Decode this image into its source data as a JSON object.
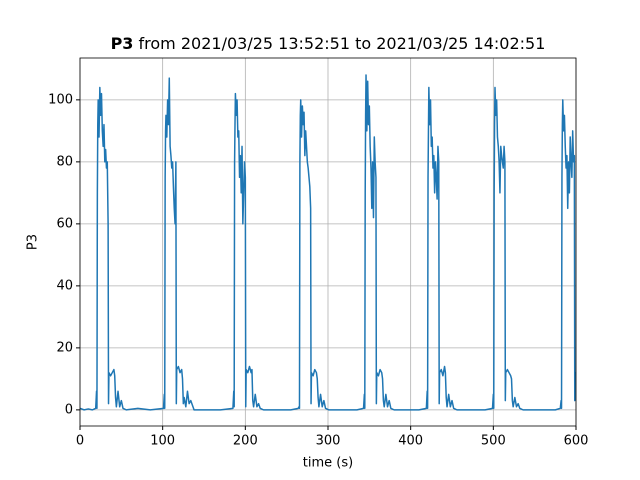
{
  "chart_data": {
    "type": "line",
    "title": [
      "P3",
      "from 2021/03/25 13:52:51 to 2021/03/25 14:02:51"
    ],
    "x_label": "time (s)",
    "y_label": "P3",
    "xlim": [
      0,
      600
    ],
    "ylim": [
      -5.2,
      113.5
    ],
    "xticks": [
      0,
      100,
      200,
      300,
      400,
      500,
      600
    ],
    "yticks": [
      0,
      20,
      40,
      60,
      80,
      100
    ],
    "grid": true,
    "series": [
      {
        "color": "#1f77b4",
        "x": [
          0,
          5,
          10,
          15,
          19,
          20,
          20.5,
          21,
          21.5,
          22,
          23,
          24,
          25,
          26,
          27,
          28,
          29,
          30,
          31,
          32,
          33,
          34,
          34.5,
          35,
          37,
          39,
          41,
          42,
          43,
          44,
          46,
          48,
          50,
          52,
          56,
          70,
          85,
          101,
          102,
          102.5,
          103,
          103.5,
          104,
          105,
          106,
          107,
          108,
          109,
          110,
          111,
          112,
          113,
          114,
          115,
          116,
          116.5,
          117,
          119,
          121,
          123,
          124,
          125,
          126,
          128,
          130,
          132,
          134,
          138,
          150,
          170,
          185,
          186,
          186.5,
          187,
          187.5,
          188,
          189,
          190,
          191,
          192,
          193,
          194,
          195,
          196,
          197,
          198,
          199,
          200,
          200.5,
          201,
          203,
          205,
          207,
          208,
          209,
          210,
          212,
          214,
          216,
          218,
          222,
          240,
          255,
          264,
          265,
          265.5,
          266,
          266.5,
          267,
          268,
          269,
          270,
          271,
          272,
          273,
          274,
          275,
          276,
          277,
          278,
          279,
          279.5,
          280,
          282,
          284,
          286,
          287,
          288,
          289,
          291,
          293,
          295,
          297,
          301,
          320,
          335,
          343,
          344,
          344.5,
          345,
          345.5,
          346,
          347,
          348,
          349,
          350,
          351,
          352,
          353,
          354,
          355,
          356,
          357,
          358,
          358.5,
          359,
          361,
          363,
          365,
          366,
          367,
          368,
          370,
          372,
          374,
          376,
          380,
          395,
          410,
          419,
          420,
          420.5,
          421,
          421.5,
          422,
          423,
          424,
          425,
          426,
          427,
          428,
          429,
          430,
          431,
          432,
          433,
          434,
          434.5,
          435,
          437,
          439,
          441,
          442,
          443,
          444,
          446,
          448,
          450,
          452,
          456,
          475,
          490,
          499,
          500,
          500.5,
          501,
          501.5,
          502,
          503,
          504,
          505,
          506,
          507,
          508,
          509,
          510,
          511,
          512,
          513,
          514,
          514.5,
          515,
          517,
          519,
          521,
          522,
          523,
          524,
          526,
          528,
          530,
          532,
          536,
          550,
          565,
          575,
          581,
          582,
          582.5,
          583,
          583.5,
          584,
          585,
          586,
          587,
          588,
          589,
          590,
          591,
          592,
          593,
          594,
          595,
          596,
          597,
          598,
          598.5,
          599,
          600
        ],
        "values": [
          0.5,
          0,
          0.3,
          0,
          0.5,
          6,
          0.5,
          70,
          92,
          100,
          88,
          104,
          95,
          102,
          90,
          85,
          92,
          80,
          84,
          78,
          80,
          60,
          2,
          12,
          11,
          12,
          13,
          11,
          4,
          1,
          6,
          1,
          3,
          0.5,
          0,
          0.5,
          0,
          0.5,
          5,
          0.5,
          75,
          90,
          95,
          88,
          100,
          92,
          107,
          85,
          82,
          78,
          80,
          72,
          65,
          60,
          80,
          2,
          13,
          14,
          12,
          13,
          10,
          2,
          4,
          1,
          6,
          2,
          3,
          0,
          0,
          0,
          0.5,
          6,
          1,
          80,
          92,
          102,
          95,
          100,
          88,
          90,
          75,
          82,
          70,
          85,
          60,
          70,
          80,
          75,
          1,
          13,
          12,
          14,
          12,
          13,
          3,
          1,
          5,
          1,
          2,
          0.5,
          0,
          0,
          0,
          0.5,
          1,
          0.5,
          80,
          95,
          100,
          88,
          98,
          92,
          96,
          82,
          90,
          85,
          80,
          78,
          75,
          72,
          65,
          2,
          12,
          11,
          13,
          12,
          10,
          4,
          1,
          5,
          1,
          3,
          0.5,
          0,
          0,
          0,
          0.5,
          5,
          0.5,
          70,
          95,
          108,
          90,
          106,
          92,
          98,
          85,
          78,
          65,
          80,
          62,
          88,
          80,
          75,
          2,
          12,
          11,
          13,
          12,
          10,
          3,
          1,
          5,
          1,
          3,
          0.5,
          0,
          0,
          0,
          0.5,
          6,
          0.5,
          75,
          90,
          104,
          92,
          100,
          85,
          88,
          78,
          82,
          70,
          80,
          75,
          68,
          85,
          80,
          2,
          12,
          13,
          11,
          14,
          12,
          4,
          1,
          5,
          1,
          3,
          0.5,
          0,
          0,
          0,
          0.5,
          5,
          0.5,
          70,
          92,
          104,
          95,
          100,
          88,
          85,
          80,
          70,
          85,
          82,
          80,
          78,
          85,
          80,
          3,
          12,
          13,
          12,
          11,
          10,
          3,
          1,
          4,
          1,
          2,
          0.5,
          0,
          0,
          0,
          0,
          0.5,
          3,
          0.5,
          75,
          92,
          100,
          90,
          95,
          85,
          78,
          82,
          65,
          80,
          70,
          88,
          80,
          75,
          90,
          80,
          82,
          3,
          12,
          12
        ]
      }
    ]
  }
}
